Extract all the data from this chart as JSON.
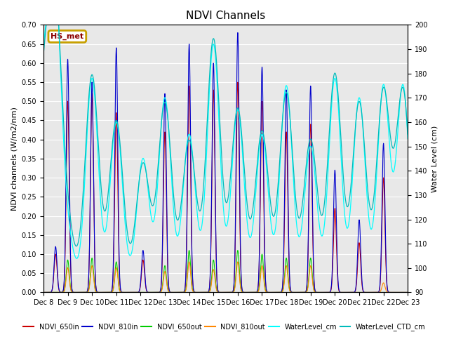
{
  "title": "NDVI Channels",
  "ylabel_left": "NDVI channels (W/m2/nm)",
  "ylabel_right": "Water Level (cm)",
  "ylim_left": [
    0.0,
    0.7
  ],
  "ylim_right": [
    90,
    200
  ],
  "yticks_left": [
    0.0,
    0.05,
    0.1,
    0.15,
    0.2,
    0.25,
    0.3,
    0.35,
    0.4,
    0.45,
    0.5,
    0.55,
    0.6,
    0.65,
    0.7
  ],
  "yticks_right": [
    90,
    100,
    110,
    120,
    130,
    140,
    150,
    160,
    170,
    180,
    190,
    200
  ],
  "background_color": "#e8e8e8",
  "legend_box_color": "#c8a000",
  "legend_box_text": "HS_met",
  "series_colors": {
    "NDVI_650in": "#cc0000",
    "NDVI_810in": "#0000cc",
    "NDVI_650out": "#00cc00",
    "NDVI_810out": "#ff8800",
    "WaterLevel_cm": "#00ffff",
    "WaterLevel_CTD_cm": "#00bbbb"
  },
  "spike_times": [
    0.5,
    1.0,
    2.0,
    3.0,
    4.1,
    5.0,
    6.0,
    7.0,
    8.0,
    9.0,
    10.0,
    11.0,
    12.0,
    13.0,
    14.0,
    14.8
  ],
  "ndvi_810in_heights": [
    0.12,
    0.61,
    0.55,
    0.64,
    0.11,
    0.52,
    0.65,
    0.6,
    0.68,
    0.59,
    0.53,
    0.54,
    0.32,
    0.19,
    0.39,
    0.0
  ],
  "ndvi_650in_heights": [
    0.1,
    0.5,
    0.52,
    0.47,
    0.085,
    0.42,
    0.54,
    0.53,
    0.55,
    0.5,
    0.42,
    0.44,
    0.22,
    0.13,
    0.3,
    0.0
  ],
  "ndvi_650out_heights": [
    0.0,
    0.085,
    0.09,
    0.08,
    0.0,
    0.07,
    0.11,
    0.085,
    0.11,
    0.1,
    0.09,
    0.09,
    0.0,
    0.0,
    0.0,
    0.0
  ],
  "ndvi_810out_heights": [
    0.0,
    0.065,
    0.07,
    0.065,
    0.0,
    0.055,
    0.08,
    0.06,
    0.08,
    0.07,
    0.07,
    0.07,
    0.0,
    0.0,
    0.025,
    0.0
  ],
  "wl_peak_heights": [
    180,
    110,
    178,
    160,
    145,
    170,
    155,
    192,
    165,
    155,
    175,
    150,
    178,
    170,
    175,
    175
  ],
  "wl_base": 95,
  "n_days": 15,
  "n_points": 3000
}
